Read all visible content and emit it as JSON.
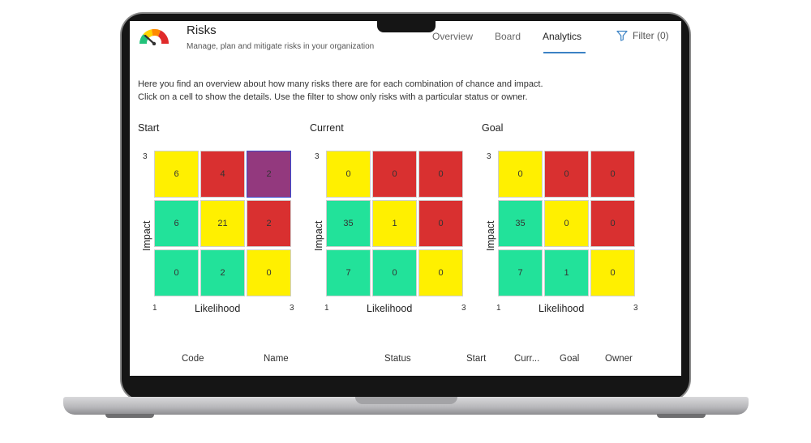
{
  "app": {
    "title": "Risks",
    "subtitle": "Manage, plan and mitigate risks in your organization"
  },
  "nav": {
    "overview": "Overview",
    "board": "Board",
    "analytics": "Analytics",
    "filter": "Filter (0)",
    "active": "Analytics"
  },
  "intro": {
    "line1": "Here you find an overview about how many risks there are for each combination of chance and impact.",
    "line2": "Click on a cell to show the details. Use the filter to show only risks with a particular status or owner."
  },
  "axis": {
    "x_label": "Likelihood",
    "y_label": "Impact",
    "min": "1",
    "max": "3"
  },
  "colors": {
    "yellow": "#fff000",
    "red": "#d93030",
    "green": "#22e29a",
    "purple": "#93397e",
    "accent": "#3b82c4"
  },
  "matrices": [
    {
      "title": "Start",
      "rows": [
        [
          {
            "v": "6",
            "c": "yellow"
          },
          {
            "v": "4",
            "c": "red"
          },
          {
            "v": "2",
            "c": "purple"
          }
        ],
        [
          {
            "v": "6",
            "c": "green"
          },
          {
            "v": "21",
            "c": "yellow"
          },
          {
            "v": "2",
            "c": "red"
          }
        ],
        [
          {
            "v": "0",
            "c": "green"
          },
          {
            "v": "2",
            "c": "green"
          },
          {
            "v": "0",
            "c": "yellow"
          }
        ]
      ]
    },
    {
      "title": "Current",
      "rows": [
        [
          {
            "v": "0",
            "c": "yellow"
          },
          {
            "v": "0",
            "c": "red"
          },
          {
            "v": "0",
            "c": "red"
          }
        ],
        [
          {
            "v": "35",
            "c": "green"
          },
          {
            "v": "1",
            "c": "yellow"
          },
          {
            "v": "0",
            "c": "red"
          }
        ],
        [
          {
            "v": "7",
            "c": "green"
          },
          {
            "v": "0",
            "c": "green"
          },
          {
            "v": "0",
            "c": "yellow"
          }
        ]
      ]
    },
    {
      "title": "Goal",
      "rows": [
        [
          {
            "v": "0",
            "c": "yellow"
          },
          {
            "v": "0",
            "c": "red"
          },
          {
            "v": "0",
            "c": "red"
          }
        ],
        [
          {
            "v": "35",
            "c": "green"
          },
          {
            "v": "0",
            "c": "yellow"
          },
          {
            "v": "0",
            "c": "red"
          }
        ],
        [
          {
            "v": "7",
            "c": "green"
          },
          {
            "v": "1",
            "c": "green"
          },
          {
            "v": "0",
            "c": "yellow"
          }
        ]
      ]
    }
  ],
  "table": {
    "columns": [
      "Code",
      "Name",
      "Status",
      "Start",
      "Curr...",
      "Goal",
      "Owner"
    ]
  }
}
